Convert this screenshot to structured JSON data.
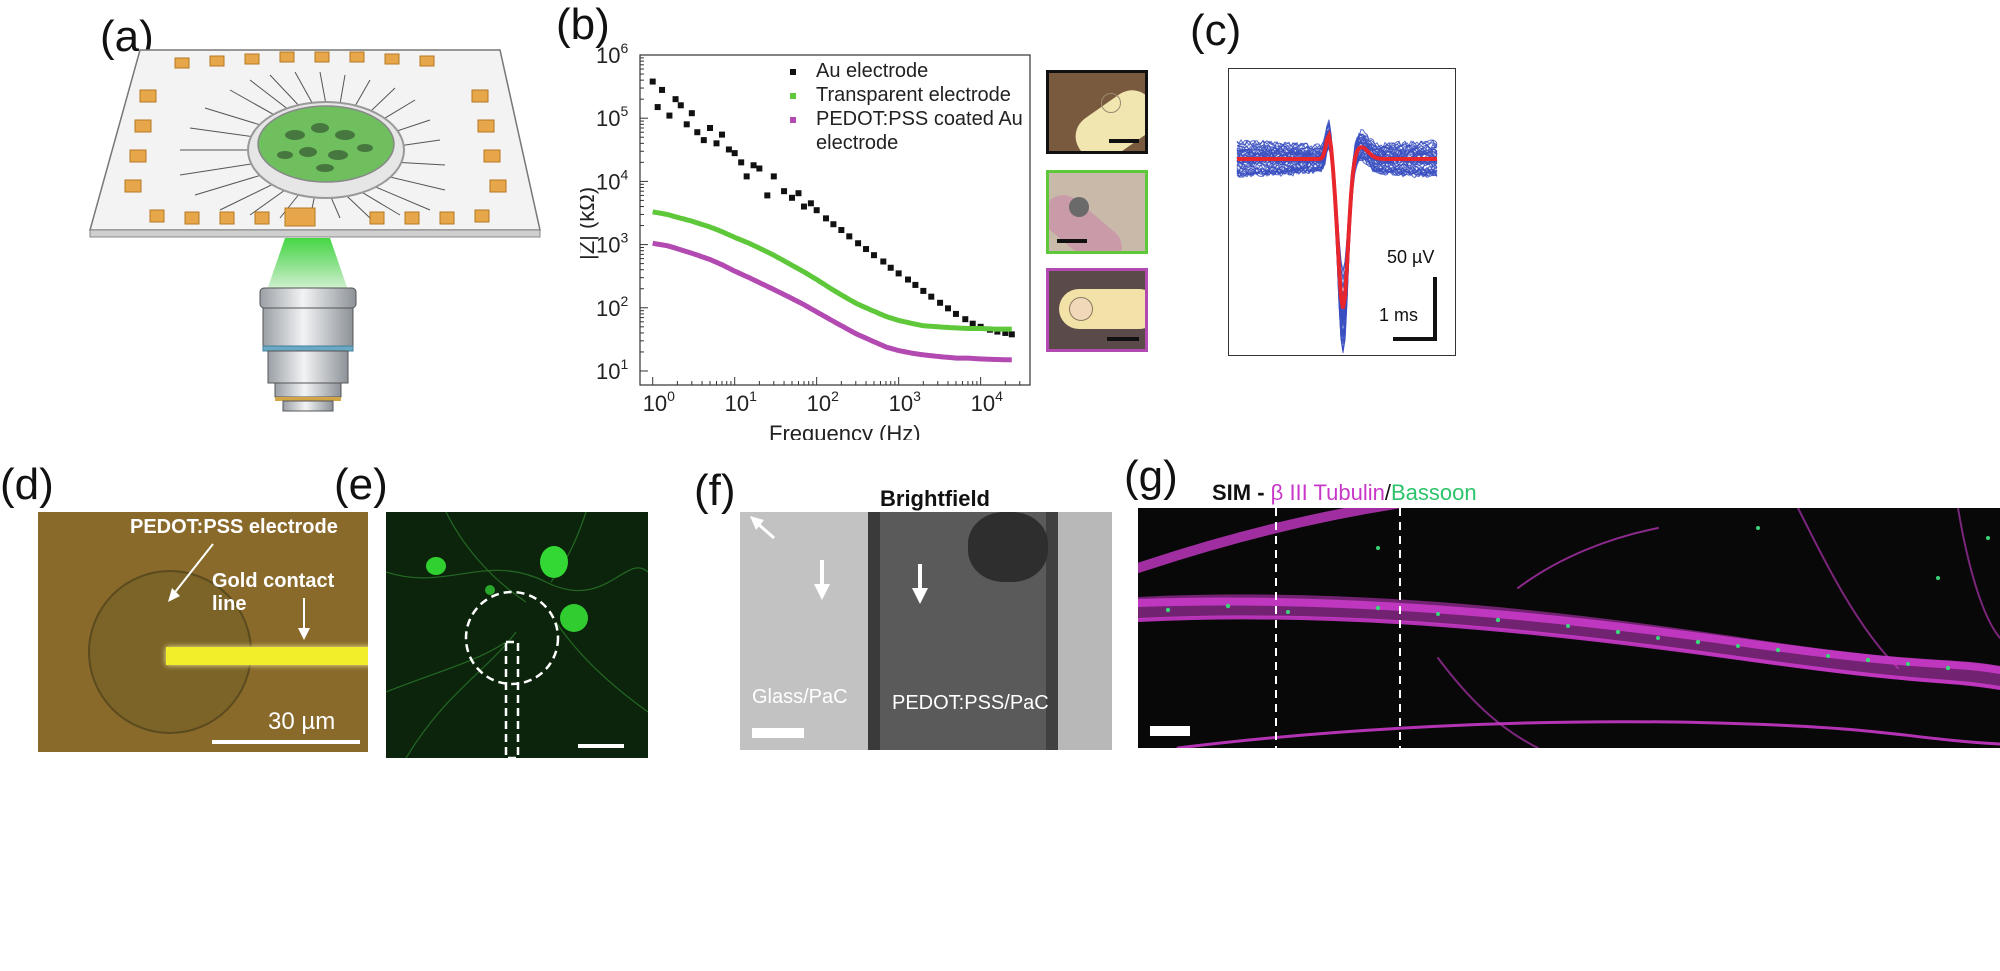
{
  "panels": {
    "a": {
      "label": "(a)"
    },
    "b": {
      "label": "(b)"
    },
    "c": {
      "label": "(c)"
    },
    "d": {
      "label": "(d)"
    },
    "e": {
      "label": "(e)"
    },
    "f": {
      "label": "(f)"
    },
    "g": {
      "label": "(g)"
    }
  },
  "panel_d": {
    "electrode_label": "PEDOT:PSS electrode",
    "contact_label": "Gold contact line",
    "scale_label": "30 µm"
  },
  "panel_c": {
    "amp_scale": "50 µV",
    "time_scale": "1 ms"
  },
  "panel_f": {
    "title": "Brightfield",
    "region_left": "Glass/PaC",
    "region_right": "PEDOT:PSS/PaC"
  },
  "panel_g": {
    "title_prefix": "SIM - ",
    "title_tubulin": "β III Tubulin",
    "title_sep": "/",
    "title_bassoon": "Bassoon"
  },
  "colors": {
    "au": "#111111",
    "transparent": "#5ec83a",
    "pedot": "#b24ab2",
    "spike_mean": "#e8262b",
    "spike_trace": "#3a4fbf",
    "tubulin": "#c838c8",
    "bassoon": "#3ad67a"
  },
  "chart_data": {
    "type": "scatter",
    "title": "",
    "xlabel": "Frequency (Hz)",
    "ylabel": "|Z| (kΩ)",
    "xscale": "log",
    "yscale": "log",
    "xlim": [
      0.7,
      40000
    ],
    "ylim": [
      6,
      1000000
    ],
    "x_ticks": [
      {
        "base": "10",
        "exp": "0"
      },
      {
        "base": "10",
        "exp": "1"
      },
      {
        "base": "10",
        "exp": "2"
      },
      {
        "base": "10",
        "exp": "3"
      },
      {
        "base": "10",
        "exp": "4"
      }
    ],
    "y_ticks": [
      {
        "base": "10",
        "exp": "1"
      },
      {
        "base": "10",
        "exp": "2"
      },
      {
        "base": "10",
        "exp": "3"
      },
      {
        "base": "10",
        "exp": "4"
      },
      {
        "base": "10",
        "exp": "5"
      },
      {
        "base": "10",
        "exp": "6"
      }
    ],
    "legend_position": "top-right",
    "series": [
      {
        "name": "Au electrode",
        "key": "au",
        "x": [
          1,
          1.15,
          1.3,
          1.6,
          1.9,
          2.2,
          2.6,
          3.0,
          3.5,
          4.2,
          5,
          6,
          7,
          8.5,
          10,
          12,
          14,
          17,
          20,
          25,
          30,
          40,
          50,
          60,
          70,
          85,
          100,
          130,
          160,
          200,
          250,
          320,
          400,
          500,
          650,
          800,
          1000,
          1300,
          1600,
          2000,
          2500,
          3200,
          4000,
          5000,
          6500,
          8000,
          10000,
          13000,
          16000,
          20000,
          24000
        ],
        "y": [
          380000,
          150000,
          280000,
          110000,
          200000,
          160000,
          80000,
          120000,
          60000,
          45000,
          70000,
          40000,
          55000,
          32000,
          28000,
          20000,
          12000,
          18000,
          16000,
          6000,
          12000,
          7000,
          5500,
          6500,
          4000,
          4500,
          3500,
          2600,
          2100,
          1700,
          1350,
          1050,
          850,
          680,
          540,
          430,
          350,
          280,
          230,
          185,
          150,
          120,
          98,
          80,
          66,
          56,
          50,
          45,
          42,
          40,
          38
        ]
      },
      {
        "name": "Transparent electrode",
        "key": "transparent",
        "x": [
          1,
          1.5,
          2,
          3,
          5,
          7,
          10,
          15,
          20,
          30,
          50,
          70,
          100,
          150,
          200,
          300,
          500,
          700,
          1000,
          1500,
          2000,
          3000,
          5000,
          7000,
          10000,
          15000,
          24000
        ],
        "y": [
          3300,
          3000,
          2700,
          2350,
          1900,
          1600,
          1300,
          1050,
          880,
          680,
          470,
          370,
          280,
          200,
          160,
          118,
          88,
          73,
          63,
          56,
          52,
          50,
          48,
          47,
          47,
          46,
          46
        ]
      },
      {
        "name": "PEDOT:PSS coated Au electrode",
        "name2": "",
        "key": "pedot",
        "x": [
          1,
          1.5,
          2,
          3,
          5,
          7,
          10,
          15,
          20,
          30,
          50,
          70,
          100,
          150,
          200,
          300,
          500,
          700,
          1000,
          1500,
          2000,
          3000,
          5000,
          7000,
          10000,
          15000,
          24000
        ],
        "y": [
          1050,
          960,
          860,
          730,
          580,
          480,
          380,
          300,
          250,
          195,
          140,
          112,
          86,
          64,
          52,
          39,
          29,
          24,
          21,
          19,
          18,
          17,
          16,
          16,
          15.5,
          15.2,
          15
        ]
      }
    ],
    "legend_lines": [
      {
        "text": "Au electrode",
        "key": "au"
      },
      {
        "text": "Transparent electrode",
        "key": "transparent"
      },
      {
        "text": "PEDOT:PSS coated Au",
        "key": "pedot"
      },
      {
        "text": "electrode",
        "key": ""
      }
    ]
  }
}
